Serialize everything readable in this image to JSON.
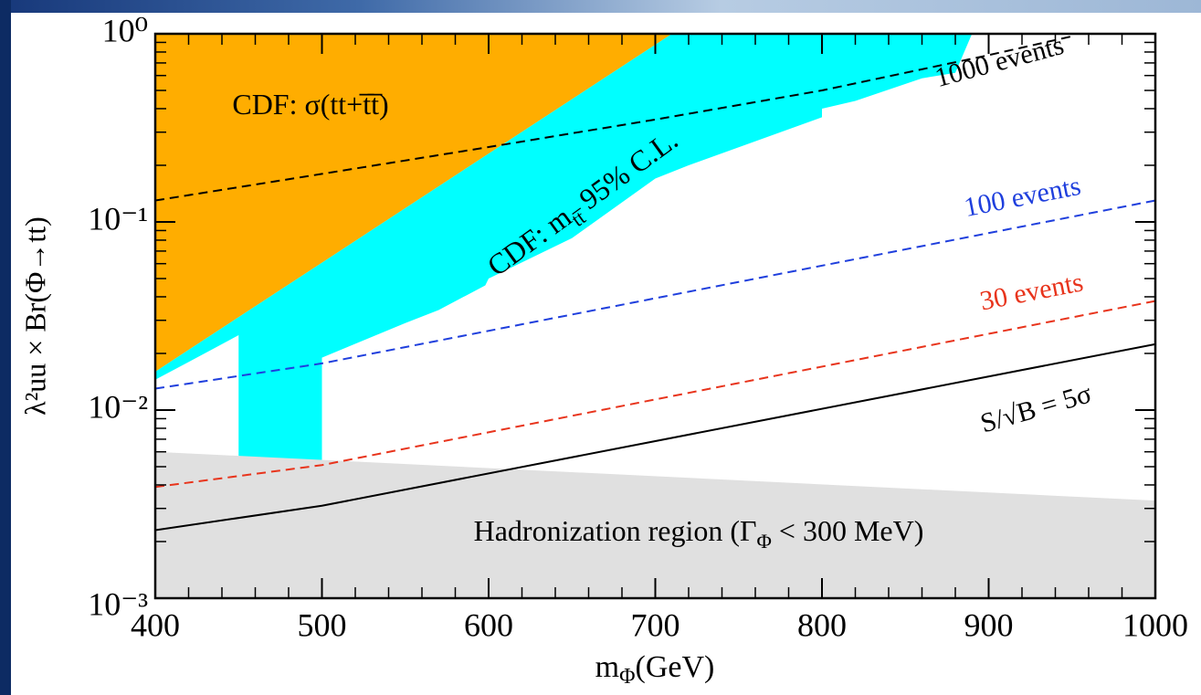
{
  "chart_data": {
    "type": "line",
    "x_label": {
      "main": "m",
      "sub": "Φ",
      "rest": "(GeV)"
    },
    "y_label": "λ²uu × Br(Φ→tt)",
    "xlim": [
      400,
      1000
    ],
    "xticks": [
      400,
      500,
      600,
      700,
      800,
      900,
      1000
    ],
    "ylim": [
      0.001,
      1
    ],
    "log_y": true,
    "yticks": [
      {
        "value": 1,
        "label": "10⁰"
      },
      {
        "value": 0.1,
        "label": "10⁻¹"
      },
      {
        "value": 0.01,
        "label": "10⁻²"
      },
      {
        "value": 0.001,
        "label": "10⁻³"
      }
    ],
    "regions": [
      {
        "label": {
          "main": "CDF: σ(tt+t̅t̅)"
        },
        "color": "#ffad00",
        "x": [
          400,
          710,
          400
        ],
        "values": [
          1,
          1,
          0.016
        ]
      },
      {
        "label": {
          "main": "CDF: m",
          "sub": "tt̅",
          "rest": " 95% C.L."
        },
        "color": "#00ffff",
        "x": [
          400,
          710,
          890,
          880,
          860,
          820,
          800,
          800,
          720,
          700,
          650,
          600,
          598,
          570,
          550,
          500,
          500,
          470,
          450,
          450,
          420,
          400
        ],
        "values": [
          0.016,
          1,
          1,
          0.62,
          0.58,
          0.44,
          0.4,
          0.36,
          0.2,
          0.17,
          0.082,
          0.05,
          0.046,
          0.034,
          0.029,
          0.019,
          0.0048,
          0.003,
          0.0027,
          0.025,
          0.018,
          0.0145
        ]
      },
      {
        "label": {
          "main": "Hadronization region (Γ",
          "sub": "Φ",
          "rest": " < 300 MeV)"
        },
        "color": "#e0e0e0",
        "x": [
          400,
          1000,
          1000,
          400
        ],
        "values": [
          0.006,
          0.0033,
          0.001,
          0.001
        ]
      }
    ],
    "series": [
      {
        "name": "1000 events",
        "color": "#000000",
        "dashed": true,
        "x": [
          400,
          500,
          600,
          700,
          800,
          900,
          950
        ],
        "values": [
          0.13,
          0.18,
          0.25,
          0.35,
          0.5,
          0.77,
          0.97
        ]
      },
      {
        "name": "100 events",
        "color": "#1f3fdd",
        "dashed": true,
        "x": [
          400,
          500,
          1000
        ],
        "values": [
          0.013,
          0.0177,
          0.13
        ]
      },
      {
        "name": "30 events",
        "color": "#e8341c",
        "dashed": true,
        "x": [
          400,
          500,
          1000
        ],
        "values": [
          0.0039,
          0.0051,
          0.038
        ]
      },
      {
        "name": "S/√B = 5σ",
        "color": "#000000",
        "dashed": false,
        "x": [
          400,
          500,
          1000
        ],
        "values": [
          0.0023,
          0.0031,
          0.0224
        ]
      }
    ]
  }
}
